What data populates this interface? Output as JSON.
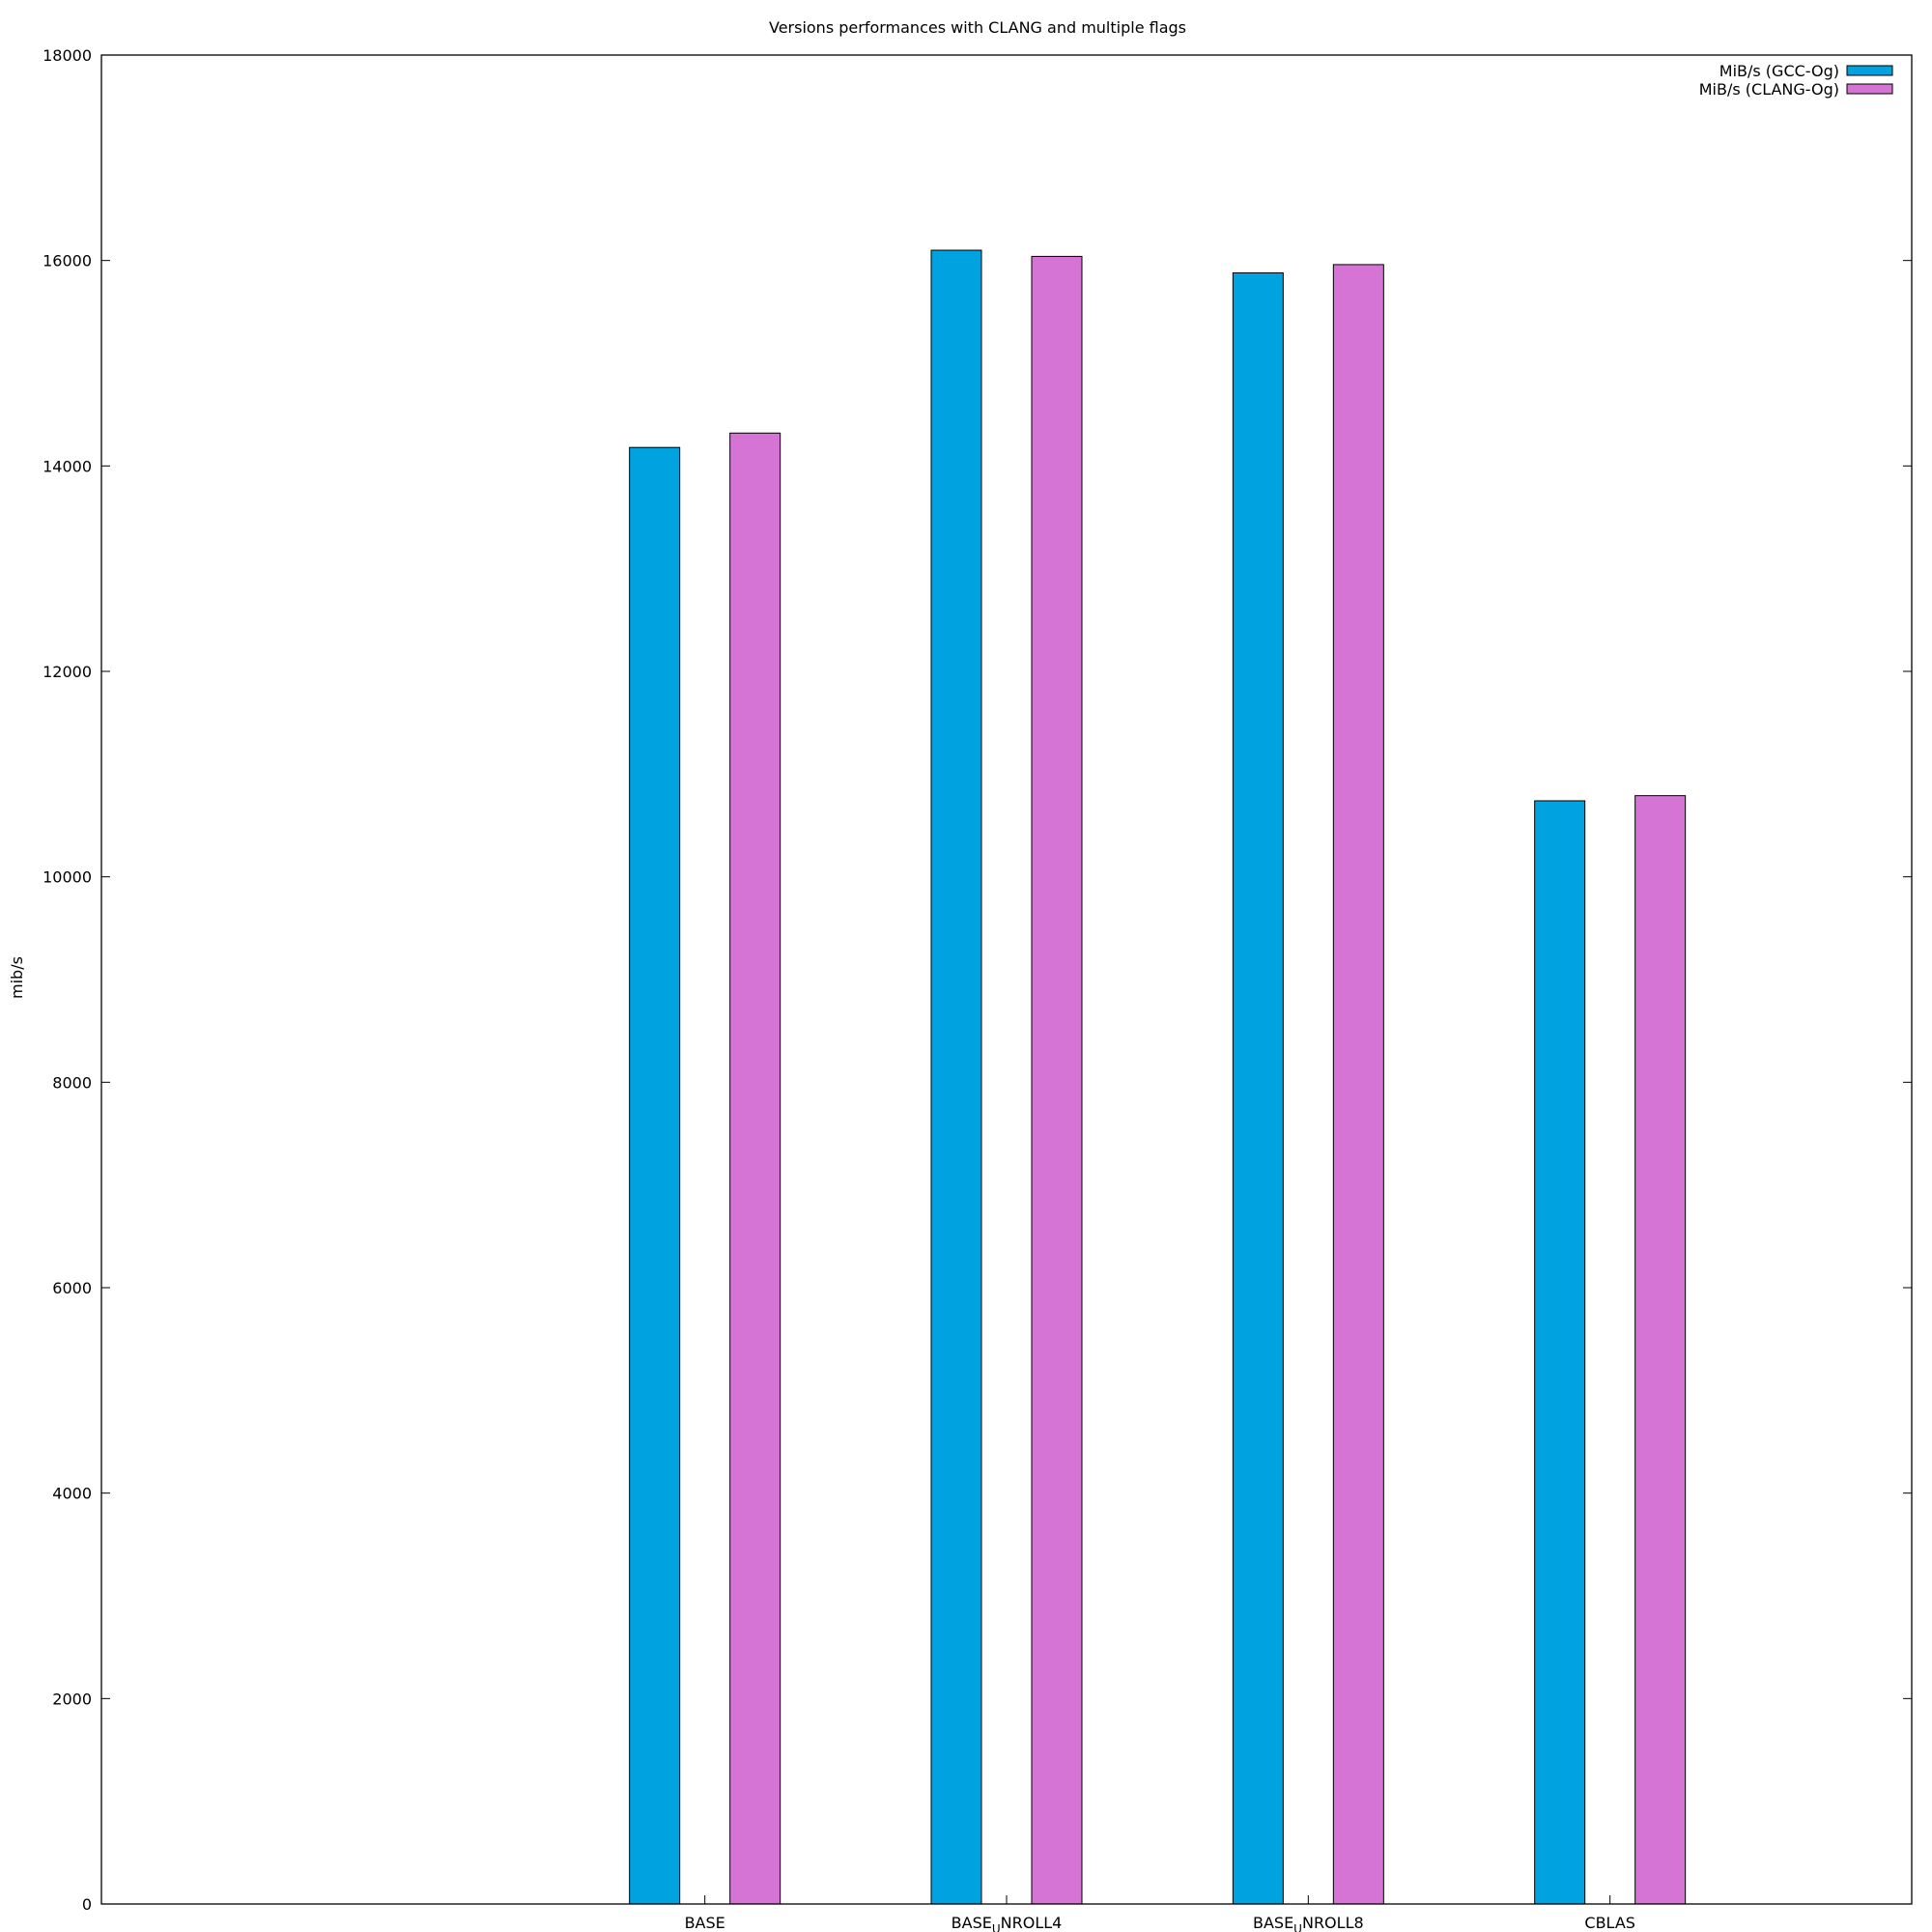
{
  "chart_data": {
    "type": "bar",
    "title": "Versions performances with CLANG and multiple flags",
    "ylabel": "mib/s",
    "xlabel": "",
    "categories": [
      {
        "base": "BASE",
        "sub": "",
        "rest": ""
      },
      {
        "base": "BASE",
        "sub": "U",
        "rest": "NROLL4"
      },
      {
        "base": "BASE",
        "sub": "U",
        "rest": "NROLL8"
      },
      {
        "base": "CBLAS",
        "sub": "",
        "rest": ""
      }
    ],
    "series": [
      {
        "name": "MiB/s (GCC-Og)",
        "color": "#00a3e0",
        "values": [
          14180,
          16100,
          15880,
          10740
        ]
      },
      {
        "name": "MiB/s (CLANG-Og)",
        "color": "#d674d6",
        "values": [
          14320,
          16040,
          15960,
          10790
        ]
      }
    ],
    "ylim": [
      0,
      18000
    ],
    "yticks": [
      0,
      2000,
      4000,
      6000,
      8000,
      10000,
      12000,
      14000,
      16000,
      18000
    ],
    "legend_position": "top-right",
    "grid": false
  }
}
